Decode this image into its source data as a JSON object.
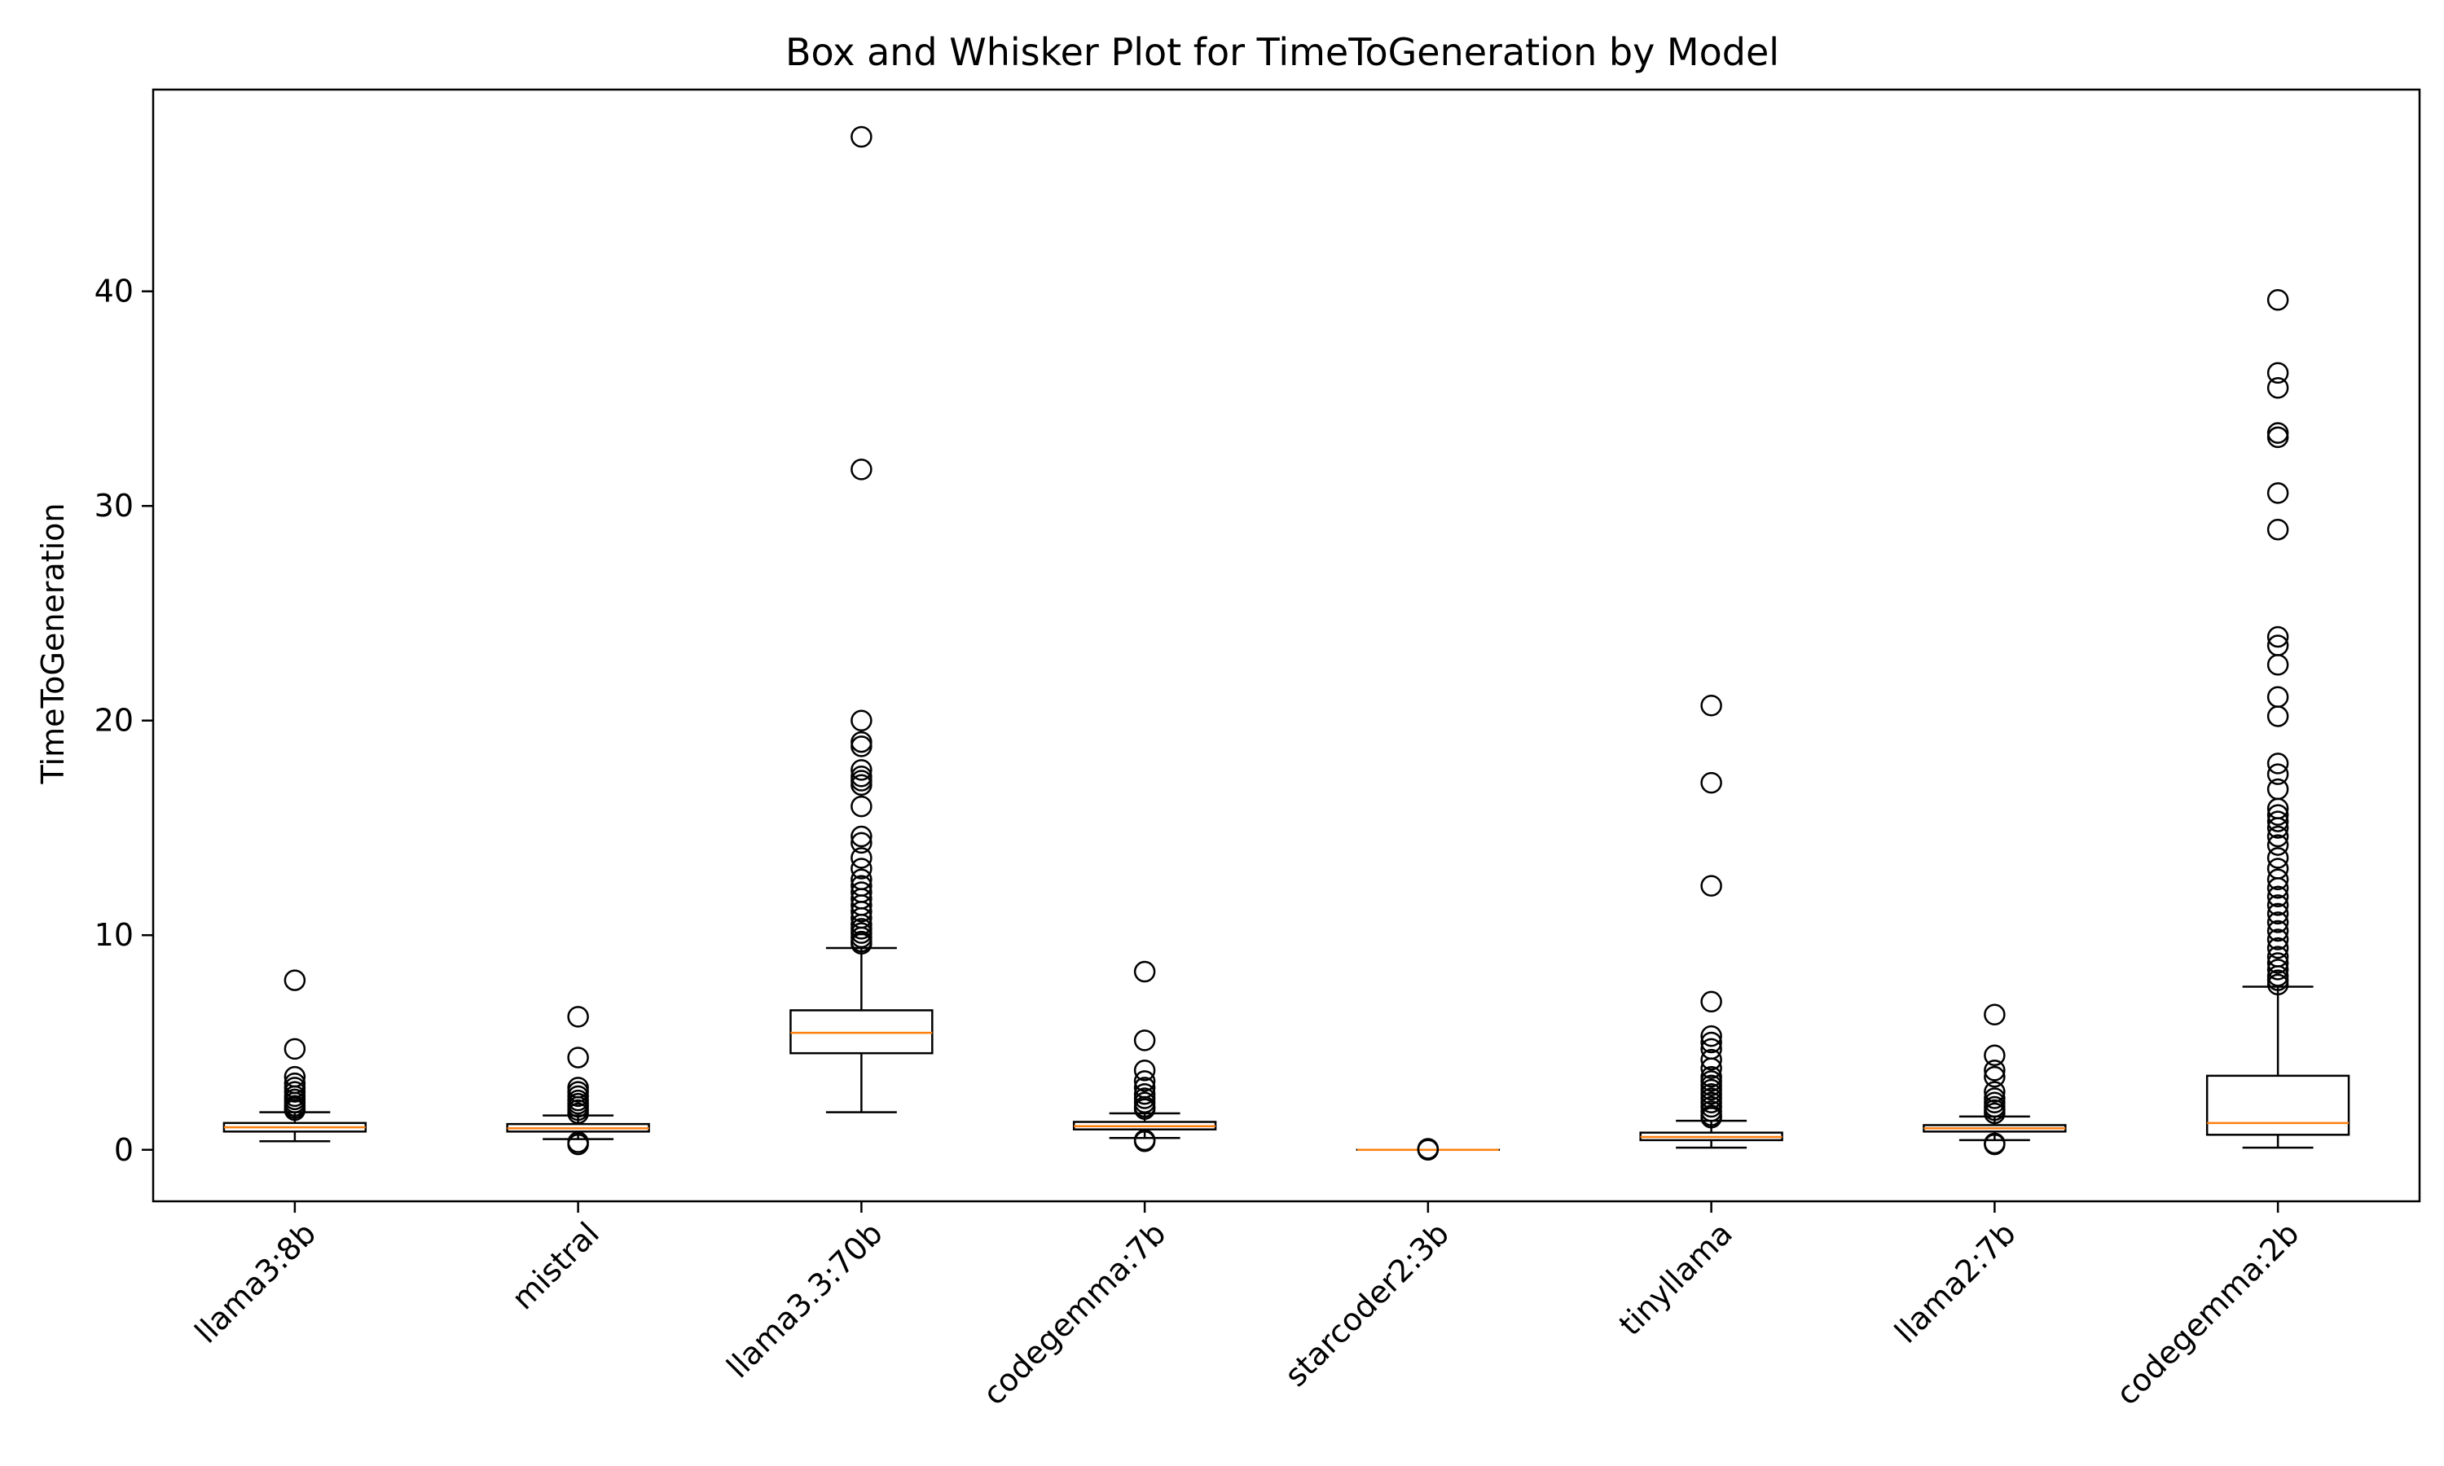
{
  "chart_data": {
    "type": "box",
    "title": "Box and Whisker Plot for TimeToGeneration by Model",
    "xlabel": "",
    "ylabel": "TimeToGeneration",
    "ylim": [
      -2.4,
      49.4
    ],
    "yticks": [
      0,
      10,
      20,
      30,
      40
    ],
    "grid": false,
    "colors": {
      "box": "#000000",
      "median": "#ff7f0e",
      "flier": "#000000",
      "background": "#ffffff"
    },
    "categories": [
      "llama3:8b",
      "mistral",
      "llama3.3:70b",
      "codegemma:7b",
      "starcoder2:3b",
      "tinyllama",
      "llama2:7b",
      "codegemma:2b"
    ],
    "boxes": [
      {
        "name": "llama3:8b",
        "whislo": 0.4,
        "q1": 0.85,
        "med": 1.05,
        "q3": 1.25,
        "whishi": 1.75,
        "fliers": [
          7.9,
          4.7,
          3.4,
          3.1,
          2.9,
          2.7,
          2.5,
          2.35,
          2.2,
          2.05,
          1.95,
          1.85
        ]
      },
      {
        "name": "mistral",
        "whislo": 0.5,
        "q1": 0.85,
        "med": 1.0,
        "q3": 1.2,
        "whishi": 1.6,
        "fliers": [
          6.2,
          4.3,
          2.9,
          2.7,
          2.5,
          2.3,
          2.15,
          2.0,
          1.85,
          1.7,
          0.35,
          0.25
        ]
      },
      {
        "name": "llama3.3:70b",
        "whislo": 1.75,
        "q1": 4.5,
        "med": 5.45,
        "q3": 6.5,
        "whishi": 9.4,
        "fliers": [
          47.2,
          31.7,
          20.0,
          19.0,
          18.8,
          17.7,
          17.4,
          17.2,
          17.0,
          16.0,
          14.6,
          14.3,
          13.6,
          13.1,
          12.6,
          12.3,
          12.0,
          11.7,
          11.4,
          11.1,
          10.8,
          10.5,
          10.3,
          10.1,
          9.9,
          9.7,
          9.6
        ]
      },
      {
        "name": "codegemma:7b",
        "whislo": 0.55,
        "q1": 0.95,
        "med": 1.1,
        "q3": 1.3,
        "whishi": 1.7,
        "fliers": [
          8.3,
          5.1,
          3.7,
          3.2,
          2.9,
          2.6,
          2.4,
          2.2,
          2.0,
          1.9,
          0.45,
          0.4
        ]
      },
      {
        "name": "starcoder2:3b",
        "whislo": 0.0,
        "q1": 0.0,
        "med": 0.0,
        "q3": 0.0,
        "whishi": 0.0,
        "fliers": [
          0.05,
          0.0
        ]
      },
      {
        "name": "tinyllama",
        "whislo": 0.1,
        "q1": 0.45,
        "med": 0.6,
        "q3": 0.8,
        "whishi": 1.35,
        "fliers": [
          20.7,
          17.1,
          12.3,
          6.9,
          5.3,
          5.0,
          4.7,
          4.2,
          3.8,
          3.4,
          3.2,
          3.0,
          2.8,
          2.6,
          2.4,
          2.2,
          2.0,
          1.8,
          1.6,
          1.5
        ]
      },
      {
        "name": "llama2:7b",
        "whislo": 0.45,
        "q1": 0.85,
        "med": 1.0,
        "q3": 1.15,
        "whishi": 1.55,
        "fliers": [
          6.3,
          4.4,
          3.7,
          3.4,
          2.7,
          2.4,
          2.2,
          2.0,
          1.85,
          1.7,
          0.3,
          0.25
        ]
      },
      {
        "name": "codegemma:2b",
        "whislo": 0.1,
        "q1": 0.7,
        "med": 1.25,
        "q3": 3.45,
        "whishi": 7.6,
        "fliers": [
          39.6,
          36.2,
          35.5,
          33.4,
          33.2,
          30.6,
          28.9,
          23.9,
          23.5,
          22.6,
          21.1,
          20.2,
          18.0,
          17.5,
          16.8,
          15.9,
          15.6,
          15.3,
          15.0,
          14.6,
          14.2,
          13.6,
          13.1,
          12.6,
          12.2,
          11.8,
          11.4,
          11.0,
          10.6,
          10.2,
          9.8,
          9.4,
          9.0,
          8.7,
          8.4,
          8.1,
          7.9,
          7.7
        ]
      }
    ]
  }
}
